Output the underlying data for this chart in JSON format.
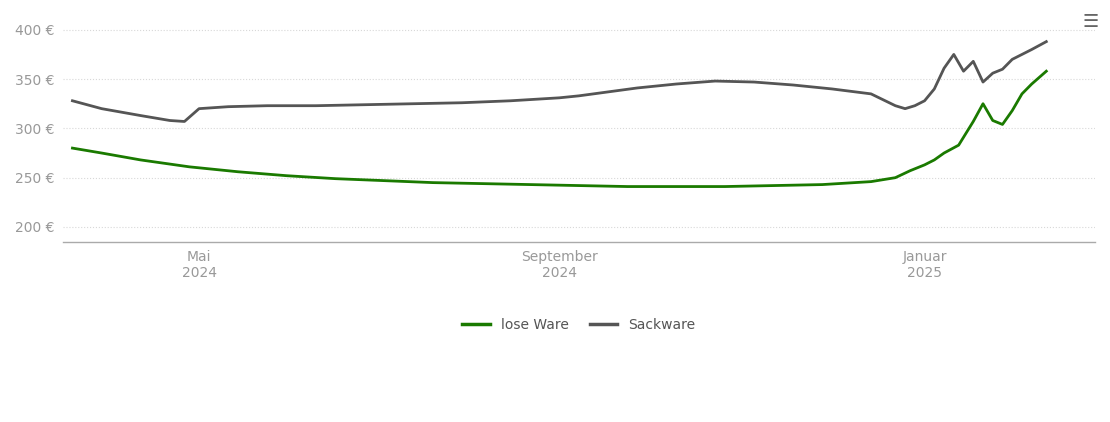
{
  "lose_ware_x": [
    0.0,
    0.03,
    0.07,
    0.12,
    0.17,
    0.22,
    0.27,
    0.32,
    0.37,
    0.42,
    0.47,
    0.52,
    0.57,
    0.62,
    0.67,
    0.72,
    0.77,
    0.82,
    0.845,
    0.86,
    0.875,
    0.885,
    0.895,
    0.91,
    0.925,
    0.935,
    0.945,
    0.955,
    0.965,
    0.975,
    0.985,
    1.0
  ],
  "lose_ware_y": [
    280,
    275,
    268,
    261,
    256,
    252,
    249,
    247,
    245,
    244,
    243,
    242,
    241,
    241,
    241,
    242,
    243,
    246,
    250,
    257,
    263,
    268,
    275,
    283,
    307,
    325,
    308,
    304,
    318,
    335,
    345,
    358
  ],
  "sackware_x": [
    0.0,
    0.03,
    0.07,
    0.1,
    0.115,
    0.13,
    0.16,
    0.2,
    0.25,
    0.3,
    0.35,
    0.4,
    0.45,
    0.5,
    0.52,
    0.55,
    0.58,
    0.62,
    0.66,
    0.7,
    0.74,
    0.78,
    0.82,
    0.845,
    0.855,
    0.865,
    0.875,
    0.885,
    0.895,
    0.905,
    0.915,
    0.925,
    0.935,
    0.945,
    0.955,
    0.965,
    0.975,
    0.985,
    1.0
  ],
  "sackware_y": [
    328,
    320,
    313,
    308,
    307,
    320,
    322,
    323,
    323,
    324,
    325,
    326,
    328,
    331,
    333,
    337,
    341,
    345,
    348,
    347,
    344,
    340,
    335,
    323,
    320,
    323,
    328,
    340,
    361,
    375,
    358,
    368,
    347,
    356,
    360,
    370,
    375,
    380,
    388
  ],
  "x_tick_positions": [
    0.13,
    0.5,
    0.875
  ],
  "x_tick_labels": [
    "Mai\n2024",
    "September\n2024",
    "Januar\n2025"
  ],
  "y_ticks": [
    200,
    250,
    300,
    350,
    400
  ],
  "y_tick_labels": [
    "200 €",
    "250 €",
    "300 €",
    "350 €",
    "400 €"
  ],
  "ylim": [
    185,
    415
  ],
  "xlim": [
    -0.01,
    1.05
  ],
  "color_lose": "#1a7a00",
  "color_sack": "#555555",
  "legend_lose": "lose Ware",
  "legend_sack": "Sackware",
  "bg_color": "#ffffff",
  "grid_color": "#d8d8d8",
  "linewidth": 2.0
}
